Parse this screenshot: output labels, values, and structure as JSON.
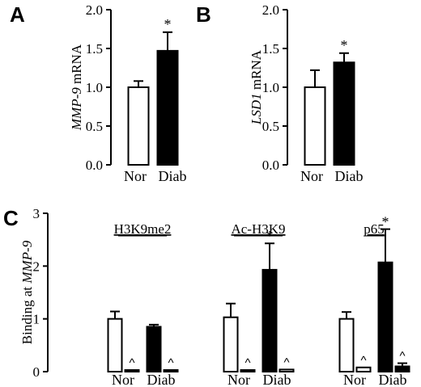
{
  "chart_data": [
    {
      "panel": "A",
      "type": "bar",
      "ylabel_italic": "MMP-9",
      "ylabel_rest": " mRNA",
      "ylim": [
        0,
        2.0
      ],
      "yticks": [
        "0.0",
        "0.5",
        "1.0",
        "1.5",
        "2.0"
      ],
      "categories": [
        "Nor",
        "Diab"
      ],
      "values": [
        1.0,
        1.47
      ],
      "errors": [
        0.08,
        0.24
      ],
      "fills": [
        "open",
        "filled"
      ],
      "significance": [
        "",
        "*"
      ]
    },
    {
      "panel": "B",
      "type": "bar",
      "ylabel_italic": "LSD1",
      "ylabel_rest": " mRNA",
      "ylim": [
        0,
        2.0
      ],
      "yticks": [
        "0.0",
        "0.5",
        "1.0",
        "1.5",
        "2.0"
      ],
      "categories": [
        "Nor",
        "Diab"
      ],
      "values": [
        1.0,
        1.32
      ],
      "errors": [
        0.22,
        0.12
      ],
      "fills": [
        "open",
        "filled"
      ],
      "significance": [
        "",
        "*"
      ]
    },
    {
      "panel": "C",
      "type": "bar",
      "ylabel_plain": "Binding at ",
      "ylabel_italic": "MMP-9",
      "ylim": [
        0,
        3
      ],
      "yticks": [
        "0",
        "1",
        "2",
        "3"
      ],
      "groups": [
        {
          "title": "H3K9me2",
          "categories": [
            "Nor",
            "Diab"
          ],
          "values": [
            1.0,
            0.02,
            0.85,
            0.02
          ],
          "errors": [
            0.14,
            0.0,
            0.04,
            0.0
          ],
          "fills": [
            "open",
            "open",
            "filled",
            "open"
          ],
          "marks": [
            "",
            "^",
            "",
            "^"
          ]
        },
        {
          "title": "Ac-H3K9",
          "categories": [
            "Nor",
            "Diab"
          ],
          "values": [
            1.03,
            0.03,
            1.93,
            0.04
          ],
          "errors": [
            0.26,
            0.0,
            0.5,
            0.0
          ],
          "fills": [
            "open",
            "open",
            "filled",
            "open"
          ],
          "marks": [
            "",
            "^",
            "*",
            "^"
          ]
        },
        {
          "title": "p65",
          "categories": [
            "Nor",
            "Diab"
          ],
          "values": [
            1.0,
            0.08,
            2.07,
            0.1
          ],
          "errors": [
            0.13,
            0.0,
            0.63,
            0.06
          ],
          "fills": [
            "open",
            "open",
            "filled",
            "filled"
          ],
          "marks": [
            "",
            "^",
            "*",
            "^"
          ]
        }
      ]
    }
  ]
}
